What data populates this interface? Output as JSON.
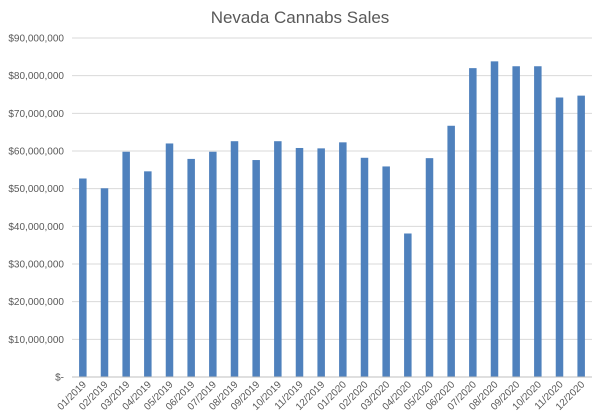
{
  "chart_data": {
    "type": "bar",
    "title": "Nevada Cannabs Sales",
    "xlabel": "",
    "ylabel": "",
    "categories": [
      "01/2019",
      "02/2019",
      "03/2019",
      "04/2019",
      "05/2019",
      "06/2019",
      "07/2019",
      "08/2019",
      "09/2019",
      "10/2019",
      "11/2019",
      "12/2019",
      "01/2020",
      "02/2020",
      "03/2020",
      "04/2020",
      "05/2020",
      "06/2020",
      "07/2020",
      "08/2020",
      "09/2020",
      "10/2020",
      "11/2020",
      "12/2020"
    ],
    "values": [
      52700000,
      50100000,
      59800000,
      54600000,
      62000000,
      57900000,
      59800000,
      62600000,
      57600000,
      62600000,
      60800000,
      60700000,
      62300000,
      58200000,
      55900000,
      38100000,
      58100000,
      66700000,
      82000000,
      83800000,
      82500000,
      82500000,
      74200000,
      74700000
    ],
    "ylim": [
      0,
      90000000
    ],
    "yticks": [
      0,
      10000000,
      20000000,
      30000000,
      40000000,
      50000000,
      60000000,
      70000000,
      80000000,
      90000000
    ],
    "ytick_labels": [
      "$-",
      "$10,000,000",
      "$20,000,000",
      "$30,000,000",
      "$40,000,000",
      "$50,000,000",
      "$60,000,000",
      "$70,000,000",
      "$80,000,000",
      "$90,000,000"
    ],
    "grid": true,
    "legend": "none",
    "bar_color": "#4f81bd"
  }
}
